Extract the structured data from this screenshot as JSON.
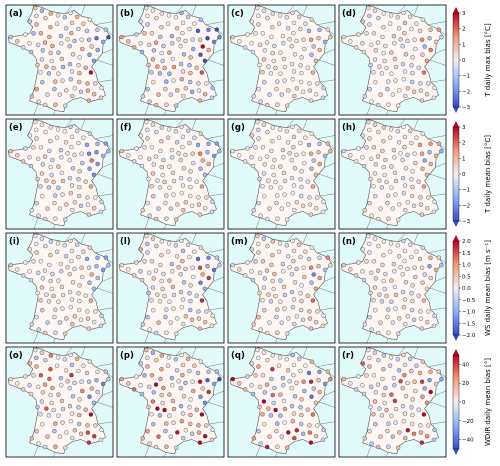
{
  "figure": {
    "panel_labels": [
      [
        "(a)",
        "(b)",
        "(c)",
        "(d)"
      ],
      [
        "(e)",
        "(f)",
        "(g)",
        "(h)"
      ],
      [
        "(i)",
        "(l)",
        "(m)",
        "(n)"
      ],
      [
        "(o)",
        "(p)",
        "(q)",
        "(r)"
      ]
    ]
  },
  "colors": {
    "sea": "#e1fbfb",
    "land": "#fdf6f2",
    "cmap_low": "#3b4cc0",
    "cmap_mid": "#f2f0ef",
    "cmap_high": "#b40426"
  },
  "chart_data": [
    {
      "type": "scatter",
      "row": 0,
      "panels": [
        "(a)",
        "(b)",
        "(c)",
        "(d)"
      ],
      "colorbar": {
        "label": "T daily max bias [°C]",
        "range": [
          -3,
          3
        ],
        "ticks": [
          "3",
          "2",
          "1",
          "0",
          "−1",
          "−2",
          "−3"
        ],
        "extend": "both"
      },
      "bias_scale": [
        0.9,
        1.0,
        0.45,
        0.55
      ]
    },
    {
      "type": "scatter",
      "row": 1,
      "panels": [
        "(e)",
        "(f)",
        "(g)",
        "(h)"
      ],
      "colorbar": {
        "label": "T daily mean bias [°C]",
        "range": [
          -3,
          3
        ],
        "ticks": [
          "3",
          "2",
          "1",
          "0",
          "−1",
          "−2",
          "−3"
        ],
        "extend": "both"
      },
      "bias_scale": [
        0.6,
        0.55,
        0.4,
        0.45
      ]
    },
    {
      "type": "scatter",
      "row": 2,
      "panels": [
        "(i)",
        "(l)",
        "(m)",
        "(n)"
      ],
      "colorbar": {
        "label": "WS daily mean bias [m s⁻¹]",
        "range": [
          -2,
          2
        ],
        "ticks": [
          "2.0",
          "1.5",
          "1.0",
          "0.5",
          "0.0",
          "−0.5",
          "−1.0",
          "−1.5",
          "−2.0"
        ],
        "extend": "both"
      },
      "bias_scale": [
        0.55,
        0.75,
        0.6,
        0.5
      ]
    },
    {
      "type": "scatter",
      "row": 3,
      "panels": [
        "(o)",
        "(p)",
        "(q)",
        "(r)"
      ],
      "colorbar": {
        "label": "WDIR daily mean bias [°]",
        "range": [
          -50,
          50
        ],
        "ticks": [
          "40",
          "20",
          "0",
          "−20",
          "−40"
        ],
        "extend": "both"
      },
      "bias_scale": [
        0.7,
        1.0,
        0.85,
        0.75
      ]
    }
  ]
}
